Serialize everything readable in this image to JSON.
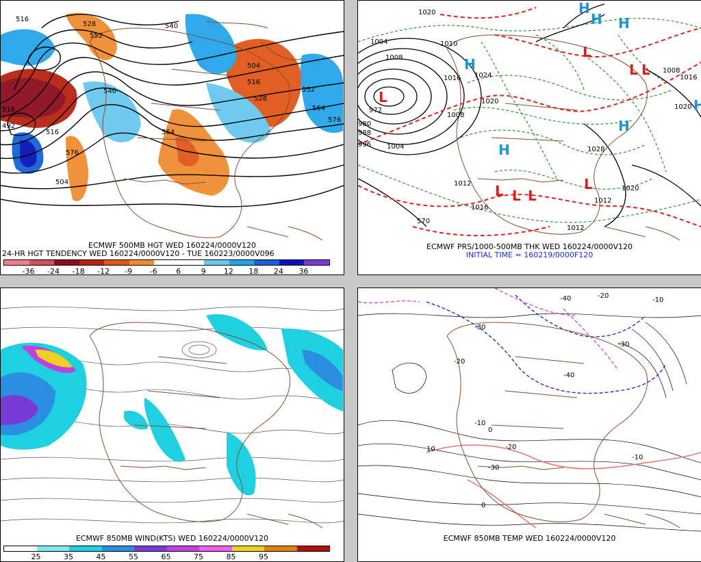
{
  "panels": {
    "tl": {
      "caption1": "ECMWF 500MB HGT WED 160224/0000V120",
      "caption2": "24-HR HGT TENDENCY WED 160224/0000V120 - TUE 160223/0000V096",
      "contour_labels": [
        "516",
        "528",
        "552",
        "540",
        "564",
        "576",
        "504",
        "516",
        "492",
        "504",
        "516",
        "528",
        "552",
        "564",
        "576",
        "516",
        "540"
      ],
      "colorbar": {
        "colors": [
          "#f07f8c",
          "#d94f5a",
          "#8c0d1f",
          "#b8230f",
          "#e0561a",
          "#f08c32",
          "#ffffff",
          "#ffffff",
          "#69c8f0",
          "#24a5e8",
          "#1463d6",
          "#0b14b8",
          "#7a3ad8"
        ],
        "ticks": [
          "-36",
          "-24",
          "-18",
          "-12",
          "-9",
          "-6",
          "6",
          "9",
          "12",
          "18",
          "24",
          "36"
        ]
      }
    },
    "tr": {
      "caption1": "ECMWF PRS/1000-500MB THK WED 160224/0000V120",
      "caption2": "INITIAL TIME = 160219/0000F120",
      "isobar_labels": [
        "1020",
        "1004",
        "1008",
        "1010",
        "1016",
        "1020",
        "1024",
        "1008",
        "972",
        "980",
        "988",
        "996",
        "1004",
        "1012",
        "1016",
        "1028",
        "1020",
        "1012",
        "1012",
        "1016",
        "1020",
        "1008",
        "570"
      ],
      "highs": [
        "H",
        "H",
        "H",
        "H",
        "H",
        "H",
        "H"
      ],
      "lows": [
        "L",
        "L",
        "L",
        "L",
        "L",
        "L",
        "L",
        "L"
      ]
    },
    "bl": {
      "caption": "ECMWF 850MB WIND(KTS) WED 160224/0000V120",
      "colorbar": {
        "colors": [
          "#ffffff",
          "#7fe8f0",
          "#1fd0e0",
          "#2a8fe0",
          "#7a3ad8",
          "#c040e0",
          "#f060f0",
          "#f0d020",
          "#e08010",
          "#b01010"
        ],
        "ticks": [
          "25",
          "35",
          "45",
          "55",
          "65",
          "75",
          "85",
          "95"
        ]
      }
    },
    "br": {
      "caption": "ECMWF 850MB TEMP WED 160224/0000V120",
      "temp_labels": [
        "-40",
        "-30",
        "-20",
        "-10",
        "0",
        "10",
        "-10",
        "-20",
        "-30",
        "-40",
        "-20",
        "-30",
        "-10",
        "0"
      ]
    }
  },
  "colors": {
    "background": "#c8c8c8",
    "coastline": "#8b4a2b",
    "height_contour": "#000000",
    "thickness_warm": "#e02020",
    "thickness_cold": "#1a1ad0",
    "precip_dash": "#1a8a1a",
    "high_symbol": "#1e96d2",
    "low_symbol": "#e01c1c"
  }
}
